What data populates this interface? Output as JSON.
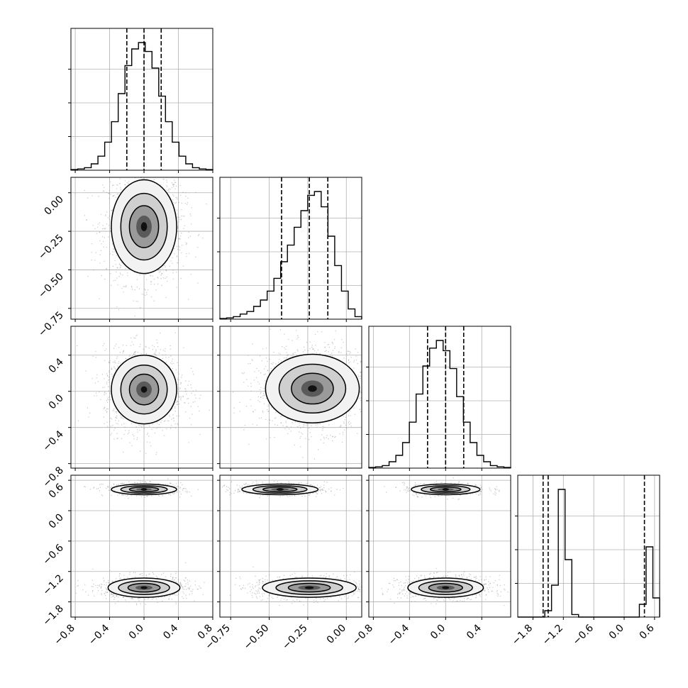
{
  "chart_data": {
    "type": "corner",
    "grid": true,
    "colors": {
      "line": "#000000",
      "points": "#9a9a9a",
      "grid": "#b0b0b0"
    },
    "parameters": [
      {
        "range": [
          -0.85,
          0.8
        ],
        "ticks": [
          -0.8,
          -0.4,
          0.0,
          0.4,
          0.8
        ],
        "quantiles": [
          -0.2,
          0.0,
          0.2
        ],
        "hist": [
          0.005,
          0.01,
          0.02,
          0.05,
          0.11,
          0.22,
          0.38,
          0.6,
          0.82,
          0.95,
          1.0,
          0.93,
          0.8,
          0.58,
          0.38,
          0.22,
          0.11,
          0.05,
          0.02,
          0.01,
          0.005
        ]
      },
      {
        "range": [
          -0.82,
          0.1
        ],
        "ticks": [
          -0.75,
          -0.5,
          -0.25,
          0.0
        ],
        "quantiles": [
          -0.42,
          -0.24,
          -0.12
        ],
        "hist": [
          0.005,
          0.01,
          0.02,
          0.04,
          0.06,
          0.1,
          0.15,
          0.22,
          0.32,
          0.45,
          0.58,
          0.72,
          0.85,
          0.97,
          1.0,
          0.88,
          0.65,
          0.42,
          0.22,
          0.08,
          0.02
        ]
      },
      {
        "range": [
          -0.85,
          0.72
        ],
        "ticks": [
          -0.8,
          -0.4,
          0.0,
          0.4
        ],
        "quantiles": [
          -0.2,
          0.0,
          0.2
        ],
        "hist": [
          0.005,
          0.01,
          0.02,
          0.05,
          0.1,
          0.2,
          0.36,
          0.58,
          0.8,
          0.94,
          1.0,
          0.92,
          0.78,
          0.56,
          0.36,
          0.2,
          0.1,
          0.05,
          0.02,
          0.01,
          0.005
        ]
      },
      {
        "range": [
          -2.1,
          0.7
        ],
        "ticks": [
          -1.8,
          -1.2,
          -0.6,
          0.0,
          0.6
        ],
        "quantiles": [
          -1.6,
          -1.5,
          0.4
        ],
        "hist": [
          0,
          0,
          0,
          0,
          0.05,
          0.25,
          1.0,
          0.45,
          0.02,
          0,
          0,
          0,
          0,
          0,
          0,
          0,
          0,
          0,
          0.1,
          0.55,
          0.15
        ]
      }
    ],
    "pairs": [
      {
        "row": 1,
        "col": 0,
        "blobs": [
          {
            "cx": 0.0,
            "cy": -0.22,
            "sx": 0.2,
            "sy": 0.16,
            "w": 1.0
          }
        ]
      },
      {
        "row": 2,
        "col": 0,
        "blobs": [
          {
            "cx": 0.0,
            "cy": 0.02,
            "sx": 0.2,
            "sy": 0.2,
            "w": 1.0
          }
        ]
      },
      {
        "row": 2,
        "col": 1,
        "blobs": [
          {
            "cx": -0.22,
            "cy": 0.03,
            "sx": 0.16,
            "sy": 0.2,
            "w": 1.0
          }
        ]
      },
      {
        "row": 3,
        "col": 0,
        "blobs": [
          {
            "cx": 0.0,
            "cy": 0.42,
            "sx": 0.2,
            "sy": 0.055,
            "w": 0.35
          },
          {
            "cx": 0.0,
            "cy": -1.52,
            "sx": 0.22,
            "sy": 0.1,
            "w": 0.65
          }
        ]
      },
      {
        "row": 3,
        "col": 1,
        "blobs": [
          {
            "cx": -0.43,
            "cy": 0.42,
            "sx": 0.13,
            "sy": 0.055,
            "w": 0.35
          },
          {
            "cx": -0.24,
            "cy": -1.52,
            "sx": 0.16,
            "sy": 0.1,
            "w": 0.65
          }
        ]
      },
      {
        "row": 3,
        "col": 2,
        "blobs": [
          {
            "cx": 0.0,
            "cy": 0.42,
            "sx": 0.2,
            "sy": 0.055,
            "w": 0.35
          },
          {
            "cx": 0.0,
            "cy": -1.52,
            "sx": 0.22,
            "sy": 0.1,
            "w": 0.65
          }
        ]
      }
    ]
  }
}
